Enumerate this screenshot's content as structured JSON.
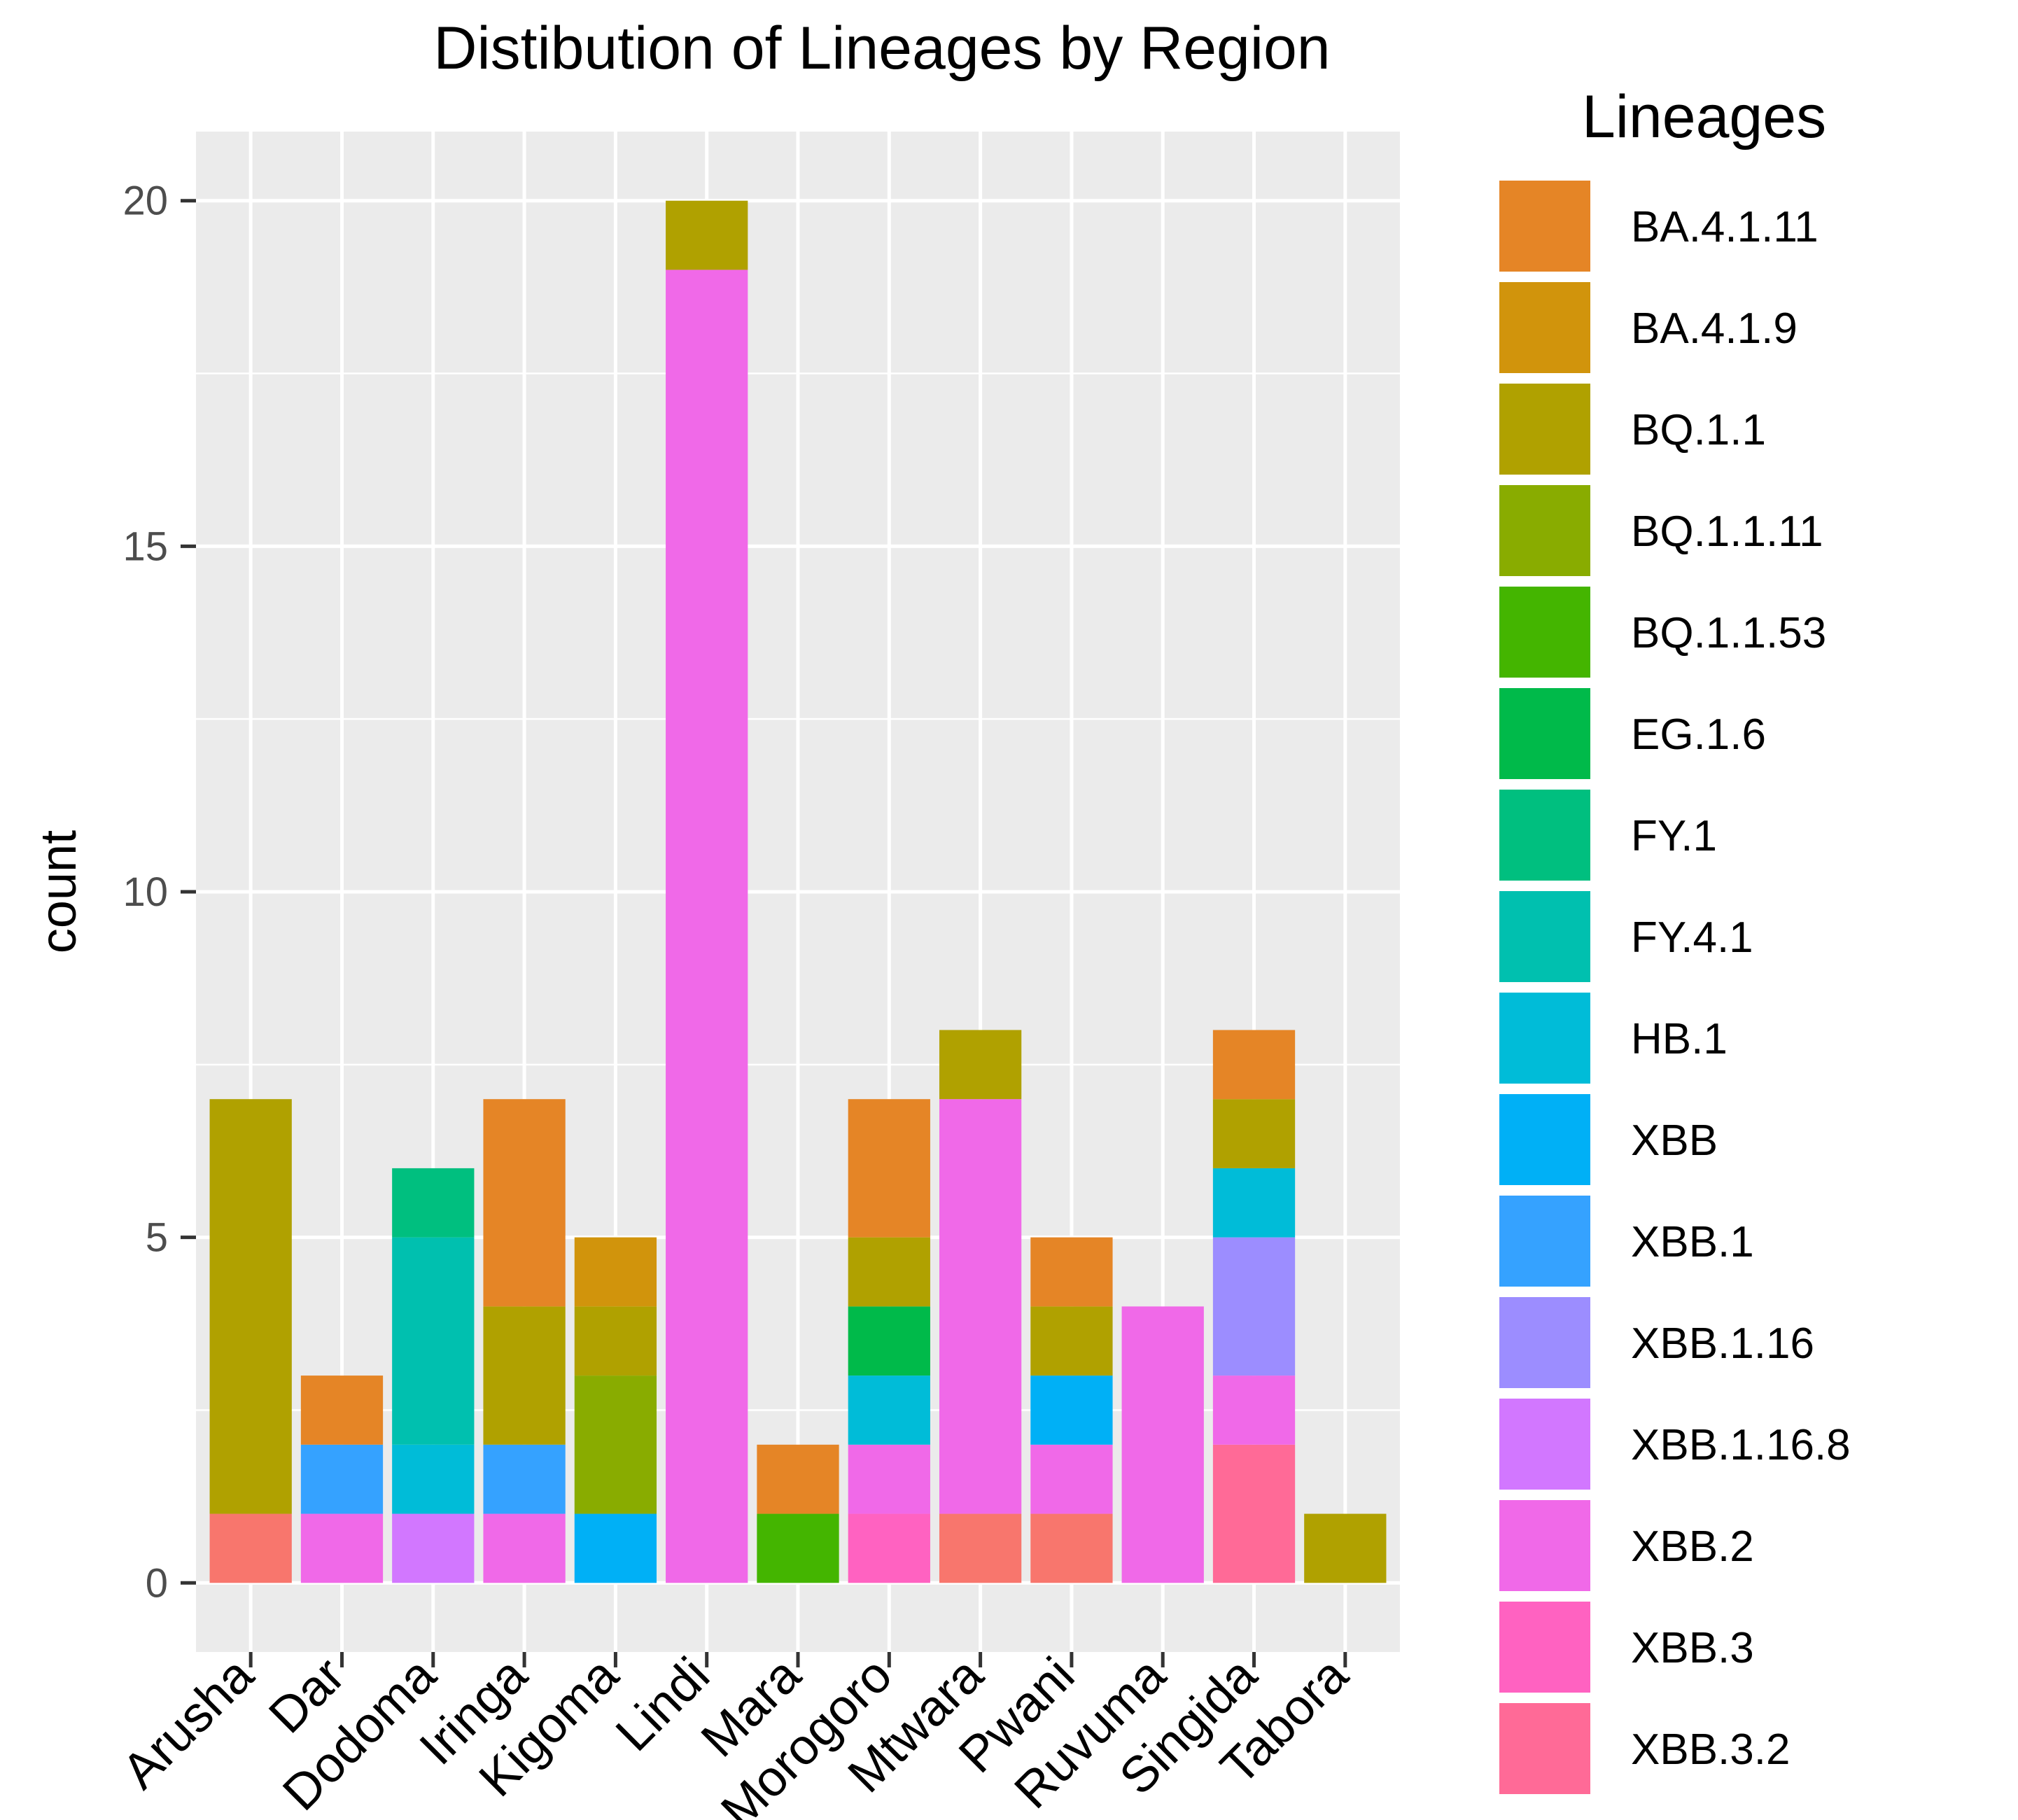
{
  "chart_data": {
    "type": "bar",
    "stacked": true,
    "title": "Distibution of Lineages by Region",
    "xlabel": "",
    "ylabel": "count",
    "ylim": [
      -1,
      21
    ],
    "yticks": [
      0,
      5,
      10,
      15,
      20
    ],
    "grid": true,
    "legend": {
      "title": "Lineages",
      "placement": "right"
    },
    "categories": [
      "Arusha",
      "Dar",
      "Dodoma",
      "Iringa",
      "Kigoma",
      "Lindi",
      "Mara",
      "Morogoro",
      "Mtwara",
      "Pwani",
      "Ruvuma",
      "Singida",
      "Tabora"
    ],
    "series": [
      {
        "name": "BA.4.1.11",
        "color": "#E58526",
        "values": [
          0,
          1,
          0,
          3,
          0,
          0,
          1,
          2,
          0,
          1,
          0,
          1,
          0
        ]
      },
      {
        "name": "BA.4.1.9",
        "color": "#D1940C",
        "values": [
          0,
          0,
          0,
          0,
          1,
          0,
          0,
          0,
          0,
          0,
          0,
          0,
          0
        ]
      },
      {
        "name": "BQ.1.1",
        "color": "#B0A100",
        "values": [
          6,
          0,
          0,
          2,
          1,
          1,
          0,
          1,
          1,
          1,
          0,
          1,
          1
        ]
      },
      {
        "name": "BQ.1.1.11",
        "color": "#89AC00",
        "values": [
          0,
          0,
          0,
          0,
          2,
          0,
          0,
          0,
          0,
          0,
          0,
          0,
          0
        ]
      },
      {
        "name": "BQ.1.1.53",
        "color": "#44B500",
        "values": [
          0,
          0,
          0,
          0,
          0,
          0,
          1,
          0,
          0,
          0,
          0,
          0,
          0
        ]
      },
      {
        "name": "EG.1.6",
        "color": "#00BA4A",
        "values": [
          0,
          0,
          0,
          0,
          0,
          0,
          0,
          1,
          0,
          0,
          0,
          0,
          0
        ]
      },
      {
        "name": "FY.1",
        "color": "#00BF7F",
        "values": [
          0,
          0,
          1,
          0,
          0,
          0,
          0,
          0,
          0,
          0,
          0,
          0,
          0
        ]
      },
      {
        "name": "FY.4.1",
        "color": "#00C0AF",
        "values": [
          0,
          0,
          3,
          0,
          0,
          0,
          0,
          0,
          0,
          0,
          0,
          0,
          0
        ]
      },
      {
        "name": "HB.1",
        "color": "#00BCD8",
        "values": [
          0,
          0,
          1,
          0,
          0,
          0,
          0,
          1,
          0,
          0,
          0,
          1,
          0
        ]
      },
      {
        "name": "XBB",
        "color": "#00B0F6",
        "values": [
          0,
          0,
          0,
          0,
          1,
          0,
          0,
          0,
          0,
          1,
          0,
          0,
          0
        ]
      },
      {
        "name": "XBB.1",
        "color": "#35A2FF",
        "values": [
          0,
          1,
          0,
          1,
          0,
          0,
          0,
          0,
          0,
          0,
          0,
          0,
          0
        ]
      },
      {
        "name": "XBB.1.16",
        "color": "#9C8DFF",
        "values": [
          0,
          0,
          0,
          0,
          0,
          0,
          0,
          0,
          0,
          0,
          0,
          2,
          0
        ]
      },
      {
        "name": "XBB.1.16.8",
        "color": "#D277FF",
        "values": [
          0,
          0,
          1,
          0,
          0,
          0,
          0,
          0,
          0,
          0,
          0,
          0,
          0
        ]
      },
      {
        "name": "XBB.2",
        "color": "#F069E8",
        "values": [
          0,
          1,
          0,
          1,
          0,
          19,
          0,
          1,
          6,
          1,
          4,
          1,
          0
        ]
      },
      {
        "name": "XBB.3",
        "color": "#FF62C1",
        "values": [
          0,
          0,
          0,
          0,
          0,
          0,
          0,
          1,
          0,
          0,
          0,
          0,
          0
        ]
      },
      {
        "name": "XBB.3.2",
        "color": "#FF6A97",
        "values": [
          0,
          0,
          0,
          0,
          0,
          0,
          0,
          0,
          0,
          0,
          0,
          2,
          0
        ]
      },
      {
        "name": "",
        "color": "#F8766D",
        "values": [
          1,
          0,
          0,
          0,
          0,
          0,
          0,
          0,
          1,
          1,
          0,
          0,
          0
        ]
      }
    ]
  }
}
